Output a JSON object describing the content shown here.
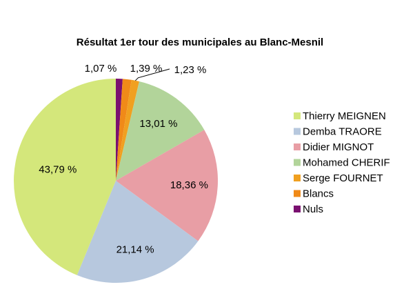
{
  "chart_data": {
    "type": "pie",
    "title": "Résultat 1er tour des municipales au Blanc-Mesnil",
    "categories": [
      "Thierry MEIGNEN",
      "Demba TRAORE",
      "Didier MIGNOT",
      "Mohamed CHERIF",
      "Serge FOURNET",
      "Blancs",
      "Nuls"
    ],
    "values": [
      43.79,
      21.14,
      18.36,
      13.01,
      1.23,
      1.39,
      1.07
    ],
    "value_labels": [
      "43,79 %",
      "21,14 %",
      "18,36 %",
      "13,01 %",
      "1,23 %",
      "1,39 %",
      "1,07 %"
    ],
    "colors": [
      "#d4e77b",
      "#b7c8de",
      "#e89ea5",
      "#b2d49a",
      "#f0a020",
      "#f08a18",
      "#7a1070"
    ],
    "legend_position": "right",
    "grid": false
  }
}
